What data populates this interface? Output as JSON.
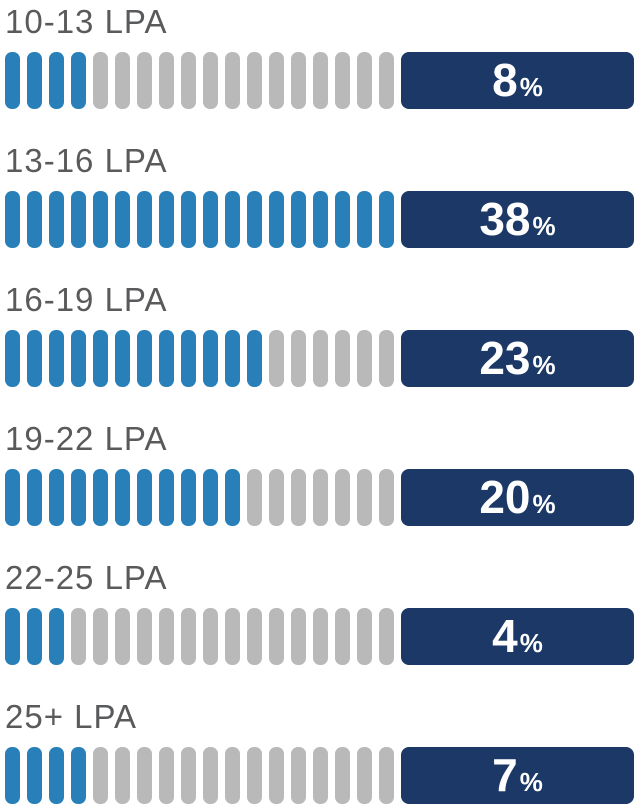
{
  "chart_data": {
    "type": "bar",
    "subtype": "segmented-pictogram",
    "categories": [
      "10-13 LPA",
      "13-16 LPA",
      "16-19 LPA",
      "19-22 LPA",
      "22-25 LPA",
      "25+ LPA"
    ],
    "values": [
      8,
      38,
      23,
      20,
      4,
      7
    ],
    "unit": "%",
    "segments_per_row": 18,
    "filled_segments": [
      4,
      18,
      12,
      11,
      3,
      4
    ],
    "legend": "none",
    "grid": false,
    "colors": {
      "segment_filled": "#2980b9",
      "segment_empty": "#b9b9b9",
      "badge_background": "#1b3866",
      "value_text": "#ffffff",
      "label_text": "#595a5c"
    },
    "rows": [
      {
        "label": "10-13 LPA",
        "value": "8",
        "unit": "%",
        "filled": 4,
        "total": 18
      },
      {
        "label": "13-16 LPA",
        "value": "38",
        "unit": "%",
        "filled": 18,
        "total": 18
      },
      {
        "label": "16-19 LPA",
        "value": "23",
        "unit": "%",
        "filled": 12,
        "total": 18
      },
      {
        "label": "19-22 LPA",
        "value": "20",
        "unit": "%",
        "filled": 11,
        "total": 18
      },
      {
        "label": "22-25 LPA",
        "value": "4",
        "unit": "%",
        "filled": 3,
        "total": 18
      },
      {
        "label": "25+ LPA",
        "value": "7",
        "unit": "%",
        "filled": 4,
        "total": 18
      }
    ]
  }
}
